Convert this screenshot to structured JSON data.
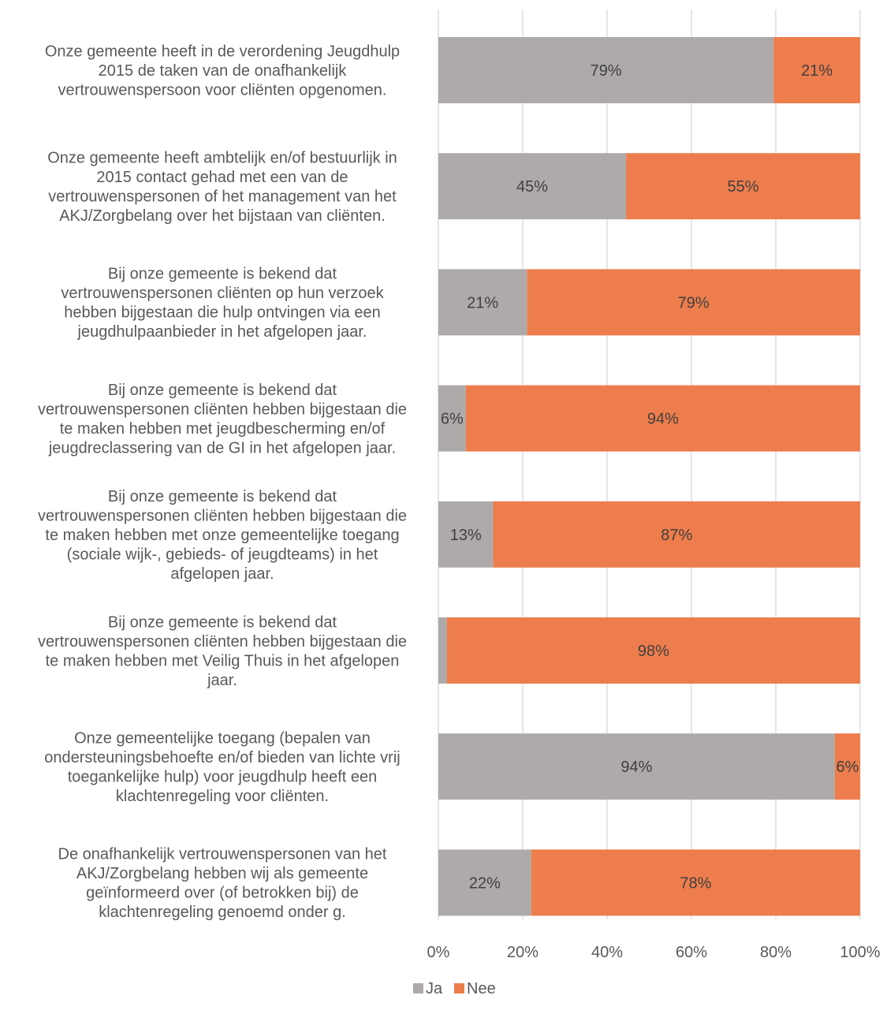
{
  "chart_data": {
    "type": "bar",
    "orientation": "horizontal",
    "stacked": "percent",
    "categories": [
      "Onze gemeente heeft in de verordening Jeugdhulp 2015 de taken van de onafhankelijk vertrouwenspersoon voor cliënten opgenomen.",
      "Onze gemeente heeft ambtelijk en/of bestuurlijk in 2015 contact gehad met een van de vertrouwenspersonen of het management van het AKJ/Zorgbelang over het bijstaan van cliënten.",
      "Bij onze gemeente is bekend dat vertrouwenspersonen cliënten op hun verzoek hebben bijgestaan die hulp ontvingen via een jeugdhulpaanbieder in het afgelopen jaar.",
      "Bij onze gemeente is bekend dat vertrouwenspersonen cliënten hebben bijgestaan die te maken hebben met jeugdbescherming en/of jeugdreclassering van de GI in het afgelopen jaar.",
      "Bij onze gemeente is bekend dat vertrouwenspersonen cliënten hebben bijgestaan die te maken hebben met onze gemeentelijke toegang (sociale wijk-, gebieds- of jeugdteams) in het afgelopen jaar.",
      "Bij onze gemeente is bekend dat vertrouwenspersonen cliënten hebben bijgestaan die te maken hebben met Veilig Thuis in het afgelopen jaar.",
      "Onze gemeentelijke toegang (bepalen van ondersteuningsbehoefte en/of bieden van lichte vrij toegankelijke hulp) voor jeugdhulp heeft een klachtenregeling voor cliënten.",
      "De onafhankelijk vertrouwenspersonen van het AKJ/Zorgbelang hebben wij als gemeente geïnformeerd over (of betrokken bij) de klachtenregeling genoemd onder g."
    ],
    "category_lines": [
      [
        "Onze gemeente heeft in de verordening Jeugdhulp",
        "2015 de taken van de onafhankelijk",
        "vertrouwenspersoon voor cliënten opgenomen."
      ],
      [
        "Onze gemeente heeft ambtelijk en/of bestuurlijk in",
        "2015 contact gehad met een van de",
        "vertrouwenspersonen of het management van het",
        "AKJ/Zorgbelang over het bijstaan van cliënten."
      ],
      [
        "Bij onze gemeente is bekend dat",
        "vertrouwenspersonen cliënten op hun verzoek",
        "hebben bijgestaan die hulp ontvingen via een",
        "jeugdhulpaanbieder in het afgelopen jaar."
      ],
      [
        "Bij onze gemeente is bekend dat",
        "vertrouwenspersonen cliënten hebben bijgestaan die",
        "te maken hebben met jeugdbescherming en/of",
        "jeugdreclassering van de GI in het afgelopen jaar."
      ],
      [
        "Bij onze gemeente is bekend dat",
        "vertrouwenspersonen cliënten hebben bijgestaan die",
        "te maken hebben met onze gemeentelijke toegang",
        "(sociale wijk-, gebieds- of jeugdteams) in het",
        "afgelopen jaar."
      ],
      [
        "Bij onze gemeente is bekend dat",
        "vertrouwenspersonen cliënten hebben bijgestaan die",
        "te maken hebben met Veilig Thuis in het afgelopen",
        "jaar."
      ],
      [
        "Onze gemeentelijke toegang (bepalen van",
        "ondersteuningsbehoefte en/of bieden van lichte vrij",
        "toegankelijke hulp) voor jeugdhulp heeft een",
        "klachtenregeling voor cliënten."
      ],
      [
        "De onafhankelijk vertrouwenspersonen van het",
        "AKJ/Zorgbelang hebben wij als gemeente",
        "geïnformeerd over (of betrokken bij) de",
        "klachtenregeling genoemd onder g."
      ]
    ],
    "series": [
      {
        "name": "Ja",
        "color": "#aeaaaa",
        "values": [
          79.5,
          44.5,
          21,
          6.5,
          13,
          2,
          94,
          22
        ],
        "labels": [
          "79%",
          "45%",
          "21%",
          "6%",
          "13%",
          "",
          "94%",
          "22%"
        ]
      },
      {
        "name": "Nee",
        "color": "#ed7d4c",
        "values": [
          20.5,
          55.5,
          79,
          93.5,
          87,
          98,
          6,
          78
        ],
        "labels": [
          "21%",
          "55%",
          "79%",
          "94%",
          "87%",
          "98%",
          "6%",
          "78%"
        ]
      }
    ],
    "xlim": [
      0,
      100
    ],
    "xticks": [
      0,
      20,
      40,
      60,
      80,
      100
    ],
    "xtick_labels": [
      "0%",
      "20%",
      "40%",
      "60%",
      "80%",
      "100%"
    ],
    "grid": true,
    "legend_position": "bottom",
    "colors": {
      "grid": "#d9d9d9",
      "text": "#595959",
      "data_label": "#404040"
    }
  }
}
